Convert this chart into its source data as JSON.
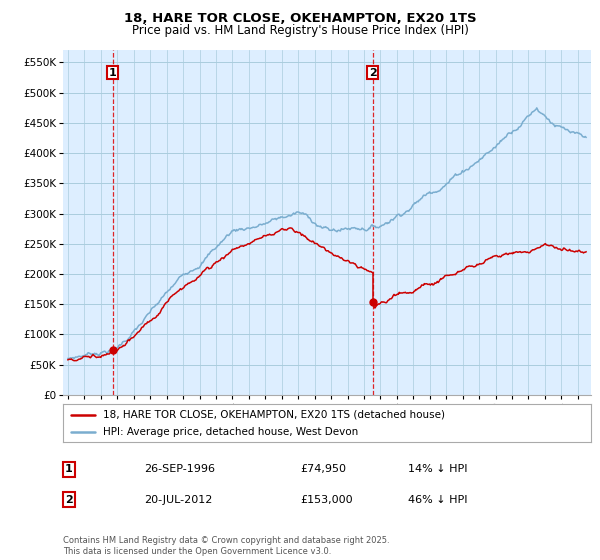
{
  "title1": "18, HARE TOR CLOSE, OKEHAMPTON, EX20 1TS",
  "title2": "Price paid vs. HM Land Registry's House Price Index (HPI)",
  "ytick_vals": [
    0,
    50000,
    100000,
    150000,
    200000,
    250000,
    300000,
    350000,
    400000,
    450000,
    500000,
    550000
  ],
  "ylim": [
    0,
    570000
  ],
  "xlim_left": 1993.7,
  "xlim_right": 2025.8,
  "sale1_year": 1996.73,
  "sale1_price": 74950,
  "sale2_year": 2012.54,
  "sale2_price": 153000,
  "sale1_date": "26-SEP-1996",
  "sale2_date": "20-JUL-2012",
  "sale1_hpi_diff": "14% ↓ HPI",
  "sale2_hpi_diff": "46% ↓ HPI",
  "legend_line1": "18, HARE TOR CLOSE, OKEHAMPTON, EX20 1TS (detached house)",
  "legend_line2": "HPI: Average price, detached house, West Devon",
  "footnote": "Contains HM Land Registry data © Crown copyright and database right 2025.\nThis data is licensed under the Open Government Licence v3.0.",
  "red_color": "#cc0000",
  "blue_color": "#7aadcf",
  "chart_bg": "#ddeeff",
  "vline_color": "#dd0000",
  "background_color": "#ffffff",
  "grid_color": "#aaccdd"
}
